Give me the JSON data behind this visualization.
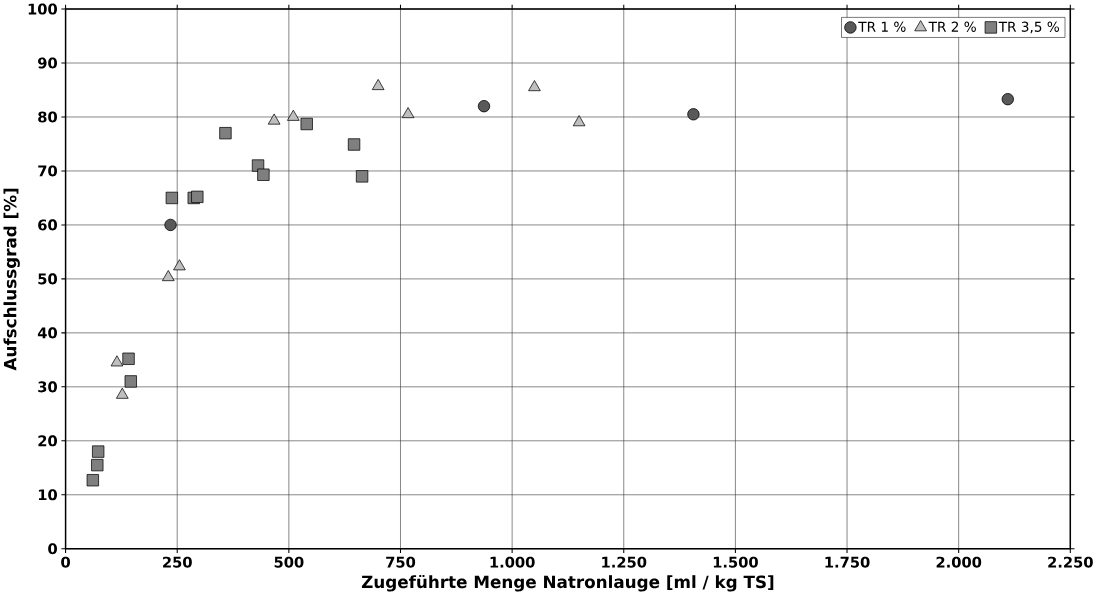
{
  "chart_data": {
    "type": "scatter",
    "xlabel": "Zugeführte Menge Natronlauge [ml / kg TS]",
    "ylabel": "Aufschlussgrad [%]",
    "xlim": [
      0,
      2250
    ],
    "ylim": [
      0,
      100
    ],
    "xticks": [
      0,
      250,
      500,
      750,
      {
        "value": 1000,
        "label": "1.000"
      },
      {
        "value": 1250,
        "label": "1.250"
      },
      {
        "value": 1500,
        "label": "1.500"
      },
      {
        "value": 1750,
        "label": "1.750"
      },
      {
        "value": 2000,
        "label": "2.000"
      },
      {
        "value": 2250,
        "label": "2.250"
      }
    ],
    "yticks": [
      0,
      10,
      20,
      30,
      40,
      50,
      60,
      70,
      80,
      90,
      100
    ],
    "grid": true,
    "legend": "top right",
    "series": [
      {
        "name": "TR 1 %",
        "color": "#595959",
        "marker": "circle",
        "x": [
          235,
          937,
          1406,
          2110
        ],
        "values": [
          60,
          82,
          80.5,
          83.3
        ]
      },
      {
        "name": "TR 2 %",
        "color": "#bfbfbf",
        "marker": "triangle",
        "x": [
          115,
          127,
          230,
          255,
          467,
          510,
          700,
          767,
          1050,
          1150
        ],
        "values": [
          34.5,
          28.5,
          50.3,
          52.3,
          79.3,
          80,
          85.7,
          80.5,
          85.5,
          79
        ]
      },
      {
        "name": "TR 3,5 %",
        "color": "#7f7f7f",
        "marker": "square",
        "x": [
          61,
          71,
          73,
          141,
          146,
          238,
          287,
          295,
          358,
          431,
          443,
          540,
          646,
          664
        ],
        "values": [
          12.7,
          15.5,
          18,
          35.2,
          31,
          65,
          65,
          65.2,
          77,
          71,
          69.3,
          78.7,
          74.9,
          69
        ]
      }
    ]
  }
}
